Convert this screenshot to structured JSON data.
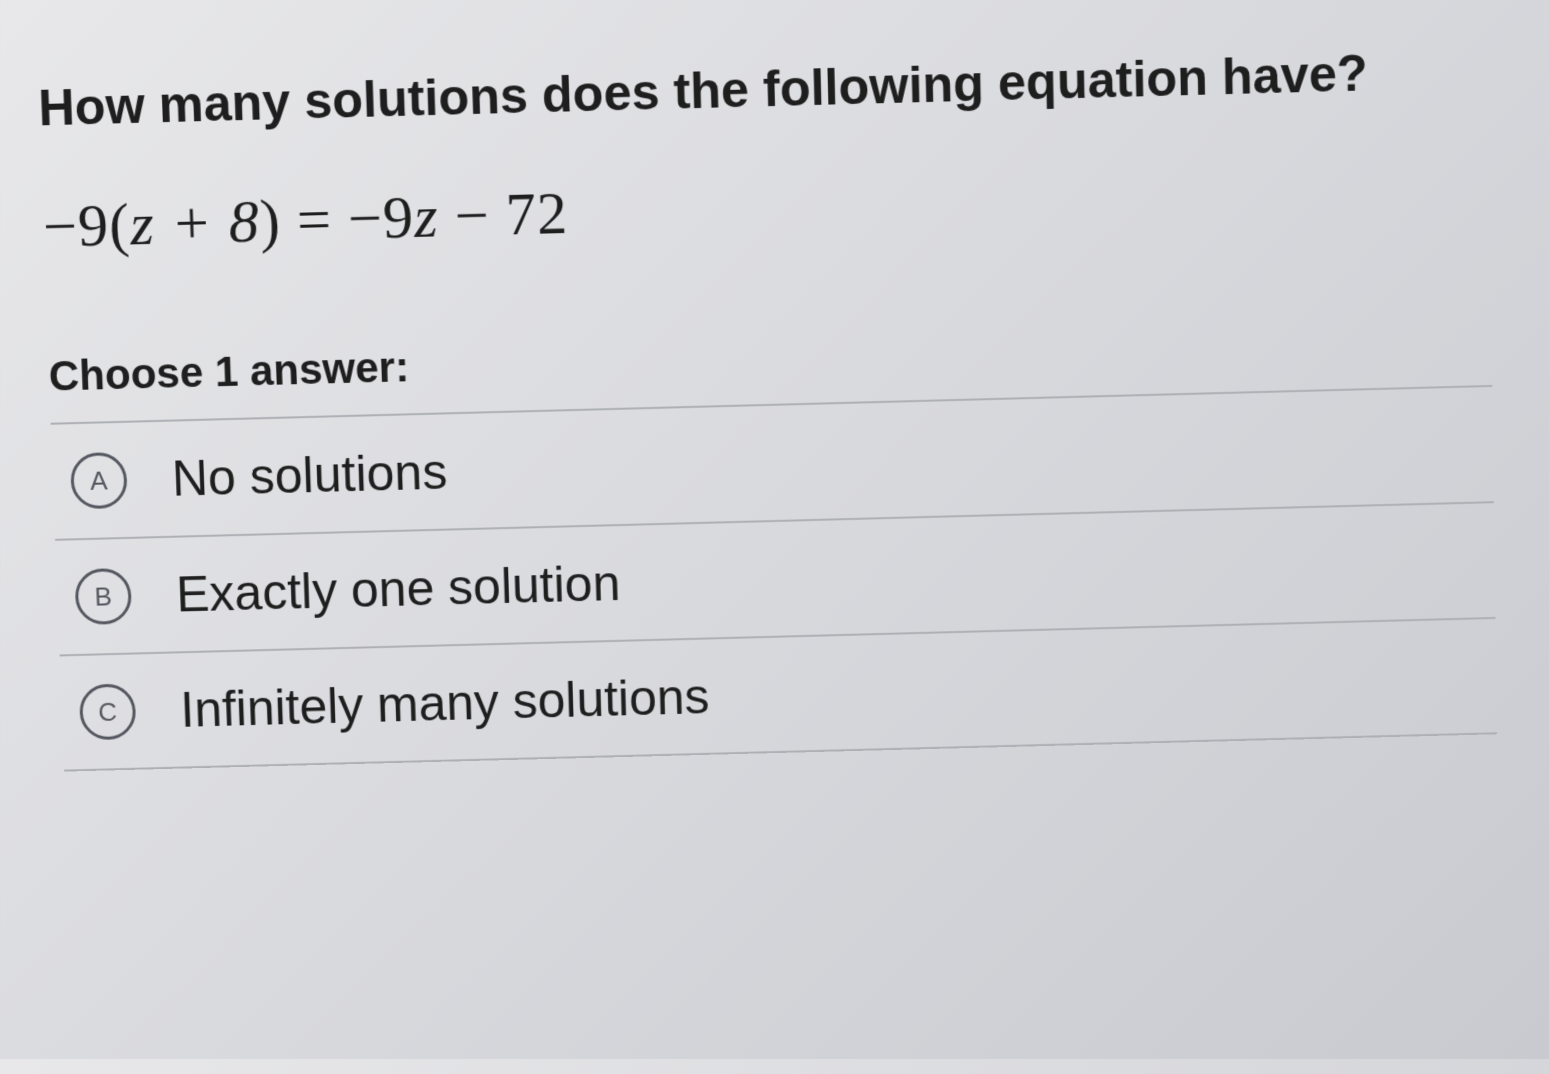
{
  "question": "How many solutions does the following equation have?",
  "equation": {
    "lhs_coef": "−9",
    "lhs_inner": "z + 8",
    "rhs": "−9z − 72"
  },
  "choose_label": "Choose 1 answer:",
  "options": [
    {
      "letter": "A",
      "text": "No solutions"
    },
    {
      "letter": "B",
      "text": "Exactly one solution"
    },
    {
      "letter": "C",
      "text": "Infinitely many solutions"
    }
  ],
  "styling": {
    "background_gradient_start": "#e8e8ea",
    "background_gradient_end": "#c8cad0",
    "text_color": "#1e1e1e",
    "circle_border_color": "#555760",
    "divider_color": "#aeb0b5",
    "question_fontsize": 50,
    "equation_fontsize": 60,
    "option_fontsize": 50,
    "circle_letter_fontsize": 26
  }
}
